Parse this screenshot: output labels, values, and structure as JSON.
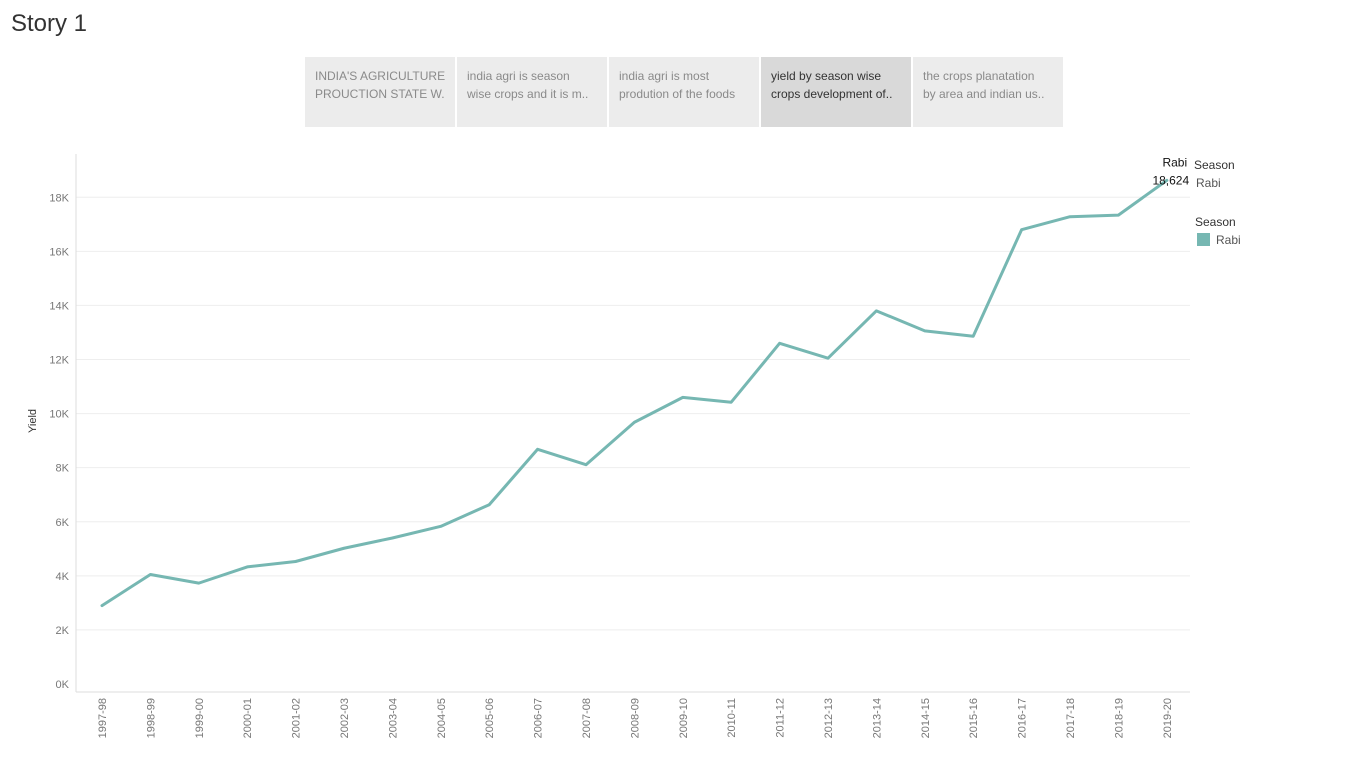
{
  "story": {
    "title": "Story 1"
  },
  "tabs": [
    {
      "line1": "INDIA'S AGRICULTURE",
      "line2": "PROUCTION STATE W..",
      "active": false
    },
    {
      "line1": "india agri is season",
      "line2": "wise crops and it is m..",
      "active": false
    },
    {
      "line1": "india agri is  most",
      "line2": "prodution of the foods",
      "active": false
    },
    {
      "line1": "yield by season wise",
      "line2": "crops development of..",
      "active": true
    },
    {
      "line1": "the crops planatation",
      "line2": "by area and indian us..",
      "active": false
    }
  ],
  "legend": {
    "filter_title": "Season",
    "filter_value": "Rabi",
    "color_title": "Season",
    "color_item": "Rabi",
    "color": "#76b7b2"
  },
  "chart_data": {
    "type": "line",
    "x": [
      "1997-98",
      "1998-99",
      "1999-00",
      "2000-01",
      "2001-02",
      "2002-03",
      "2003-04",
      "2004-05",
      "2005-06",
      "2006-07",
      "2007-08",
      "2008-09",
      "2009-10",
      "2010-11",
      "2011-12",
      "2012-13",
      "2013-14",
      "2014-15",
      "2015-16",
      "2016-17",
      "2017-18",
      "2018-19",
      "2019-20"
    ],
    "series": [
      {
        "name": "Rabi",
        "color": "#76b7b2",
        "values": [
          2900,
          4050,
          3730,
          4330,
          4530,
          5020,
          5400,
          5830,
          6630,
          8680,
          8110,
          9680,
          10600,
          10420,
          12600,
          12050,
          13800,
          13060,
          12860,
          16800,
          17280,
          17340,
          18624
        ]
      }
    ],
    "xlabel": "",
    "ylabel": "Yield",
    "ylim": [
      0,
      19600
    ],
    "yticks": [
      0,
      2000,
      4000,
      6000,
      8000,
      10000,
      12000,
      14000,
      16000,
      18000
    ],
    "ytick_labels": [
      "0K",
      "2K",
      "4K",
      "6K",
      "8K",
      "10K",
      "12K",
      "14K",
      "16K",
      "18K"
    ],
    "grid": true,
    "annotation": {
      "label": "Rabi",
      "value": "18,624",
      "index": 22
    }
  }
}
